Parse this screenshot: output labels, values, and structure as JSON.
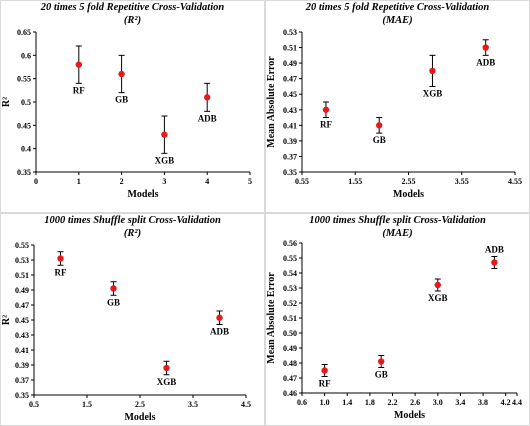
{
  "colors": {
    "marker": "#e41a1c",
    "axis": "#000000",
    "frame": "#d9d9d9"
  },
  "chart_data": [
    {
      "type": "scatter",
      "title": "20 times 5 fold Repetitive Cross-Validation",
      "subtitle": "(R²)",
      "xlabel": "Models",
      "ylabel": "R²",
      "xlim": [
        0,
        5
      ],
      "ylim": [
        0.35,
        0.65
      ],
      "xticks": [
        "0",
        "1",
        "2",
        "3",
        "4",
        "5"
      ],
      "yticks": [
        "0.35",
        "0.4",
        "0.45",
        "0.5",
        "0.55",
        "0.6",
        "0.65"
      ],
      "points": [
        {
          "label": "RF",
          "x": 1,
          "y": 0.58,
          "err": 0.04,
          "label_pos": "below"
        },
        {
          "label": "GB",
          "x": 2,
          "y": 0.56,
          "err": 0.04,
          "label_pos": "below"
        },
        {
          "label": "XGB",
          "x": 3,
          "y": 0.43,
          "err": 0.04,
          "label_pos": "below"
        },
        {
          "label": "ADB",
          "x": 4,
          "y": 0.51,
          "err": 0.03,
          "label_pos": "below"
        }
      ]
    },
    {
      "type": "scatter",
      "title": "20 times 5 fold Repetitive Cross-Validation",
      "subtitle": "(MAE)",
      "xlabel": "Models",
      "ylabel": "Mean Absolute Error",
      "xlim": [
        0.55,
        4.55
      ],
      "ylim": [
        0.35,
        0.53
      ],
      "xticks": [
        "0.55",
        "1.55",
        "2.55",
        "3.55",
        "4.55"
      ],
      "yticks": [
        "0.35",
        "0.37",
        "0.39",
        "0.41",
        "0.43",
        "0.45",
        "0.47",
        "0.49",
        "0.51",
        "0.53"
      ],
      "points": [
        {
          "label": "RF",
          "x": 1,
          "y": 0.43,
          "err": 0.01,
          "label_pos": "below"
        },
        {
          "label": "GB",
          "x": 2,
          "y": 0.41,
          "err": 0.01,
          "label_pos": "below"
        },
        {
          "label": "XGB",
          "x": 3,
          "y": 0.48,
          "err": 0.02,
          "label_pos": "below"
        },
        {
          "label": "ADB",
          "x": 4,
          "y": 0.51,
          "err": 0.01,
          "label_pos": "below"
        }
      ]
    },
    {
      "type": "scatter",
      "title": "1000 times Shuffle split Cross-Validation",
      "subtitle": "(R²)",
      "xlabel": "Models",
      "ylabel": "R²",
      "xlim": [
        0.5,
        4.5
      ],
      "ylim": [
        0.35,
        0.55
      ],
      "xticks": [
        "0.5",
        "1.5",
        "2.5",
        "3.5",
        "4.5"
      ],
      "yticks": [
        "0.35",
        "0.37",
        "0.39",
        "0.41",
        "0.43",
        "0.45",
        "0.47",
        "0.49",
        "0.51",
        "0.53",
        "0.55"
      ],
      "points": [
        {
          "label": "RF",
          "x": 1,
          "y": 0.532,
          "err": 0.009,
          "label_pos": "below"
        },
        {
          "label": "GB",
          "x": 2,
          "y": 0.492,
          "err": 0.009,
          "label_pos": "below"
        },
        {
          "label": "XGB",
          "x": 3,
          "y": 0.386,
          "err": 0.009,
          "label_pos": "below"
        },
        {
          "label": "ADB",
          "x": 4,
          "y": 0.453,
          "err": 0.009,
          "label_pos": "below"
        }
      ]
    },
    {
      "type": "scatter",
      "title": "1000 times Shuffle split Cross-Validation",
      "subtitle": "(MAE)",
      "xlabel": "Models",
      "ylabel": "Mean Absolute Error",
      "xlim": [
        0.6,
        4.4
      ],
      "ylim": [
        0.46,
        0.56
      ],
      "xticks": [
        "0.6",
        "1.0",
        "1.4",
        "1.8",
        "2.2",
        "2.6",
        "3.0",
        "3.4",
        "3.8",
        "4.2"
      ],
      "xtick_values": [
        0.6,
        1.0,
        1.4,
        1.8,
        2.2,
        2.6,
        3.0,
        3.4,
        3.8,
        4.2
      ],
      "last_xtick": "4.4",
      "yticks": [
        "0.46",
        "0.47",
        "0.48",
        "0.49",
        "0.50",
        "0.51",
        "0.52",
        "0.53",
        "0.54",
        "0.55",
        "0.56"
      ],
      "points": [
        {
          "label": "RF",
          "x": 1,
          "y": 0.475,
          "err": 0.004,
          "label_pos": "below"
        },
        {
          "label": "GB",
          "x": 2,
          "y": 0.481,
          "err": 0.004,
          "label_pos": "below"
        },
        {
          "label": "XGB",
          "x": 3,
          "y": 0.532,
          "err": 0.004,
          "label_pos": "below"
        },
        {
          "label": "ADB",
          "x": 4,
          "y": 0.547,
          "err": 0.004,
          "label_pos": "above"
        }
      ]
    }
  ]
}
